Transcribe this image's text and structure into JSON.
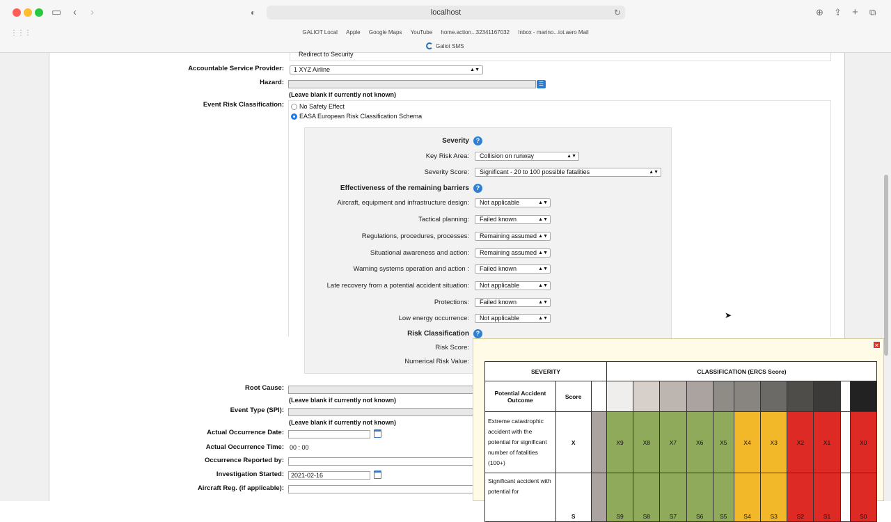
{
  "browser": {
    "url": "localhost",
    "bookmarks": [
      "GALIOT Local",
      "Apple",
      "Google Maps",
      "YouTube",
      "home.action...32341167032",
      "Inbox - marino...iot.aero Mail"
    ],
    "bookmark2": "Galiot SMS"
  },
  "form": {
    "redirect_label": "Redirect to Security",
    "accountable_label": "Accountable Service Provider:",
    "accountable_value": "1 XYZ Airline",
    "hazard_label": "Hazard:",
    "hazard_hint": "(Leave blank if currently not known)",
    "erc_label": "Event Risk Classification:",
    "erc_opt1": "No Safety Effect",
    "erc_opt2": "EASA European Risk Classification Schema",
    "root_cause_label": "Root Cause:",
    "root_cause_hint": "(Leave blank if currently not known)",
    "event_type_label": "Event Type (SPI):",
    "event_type_hint": "(Leave blank if currently not known)",
    "occ_date_label": "Actual Occurrence Date:",
    "occ_time_label": "Actual Occurrence Time:",
    "occ_time_h": "00",
    "occ_time_m": "00",
    "reported_by_label": "Occurrence Reported by:",
    "investigation_label": "Investigation Started:",
    "investigation_value": "2021-02-16",
    "aircraft_label": "Aircraft Reg. (if applicable):"
  },
  "risk": {
    "severity_heading": "Severity",
    "key_risk_label": "Key Risk Area:",
    "key_risk_value": "Collision on runway",
    "severity_score_label": "Severity Score:",
    "severity_score_value": "Significant - 20 to 100 possible fatalities",
    "barriers_heading": "Effectiveness of the remaining barriers",
    "barriers": [
      {
        "label": "Aircraft, equipment and infrastructure design:",
        "value": "Not applicable"
      },
      {
        "label": "Tactical planning:",
        "value": "Failed known"
      },
      {
        "label": "Regulations, procedures, processes:",
        "value": "Remaining assumed"
      },
      {
        "label": "Situational awareness and action:",
        "value": "Remaining assumed"
      },
      {
        "label": "Warning systems operation and action :",
        "value": "Failed known"
      },
      {
        "label": "Late recovery from a potential accident situation:",
        "value": "Not applicable"
      },
      {
        "label": "Protections:",
        "value": "Failed known"
      },
      {
        "label": "Low energy occurrence:",
        "value": "Not applicable"
      }
    ],
    "classification_heading": "Risk Classification",
    "risk_score_label": "Risk Score:",
    "numerical_label": "Numerical Risk Value:"
  },
  "popup": {
    "col_severity": "SEVERITY",
    "col_classification": "CLASSIFICATION (ERCS Score)",
    "col_outcome": "Potential Accident Outcome",
    "col_score": "Score",
    "row1_text": "Extreme catastrophic accident with the potential for significant number of fatalities (100+)",
    "row1_score": "X",
    "row1_cells": [
      "X9",
      "X8",
      "X7",
      "X6",
      "X5",
      "X4",
      "X3",
      "X2",
      "X1",
      "X0"
    ],
    "row2_text": "Significant accident with potential for",
    "row2_score": "S",
    "row2_cells": [
      "S9",
      "S8",
      "S7",
      "S6",
      "S5",
      "S4",
      "S3",
      "S2",
      "S1",
      "S0"
    ],
    "colors": {
      "green": "#8faa5a",
      "yellow": "#f2b829",
      "red": "#dd2a25"
    }
  }
}
